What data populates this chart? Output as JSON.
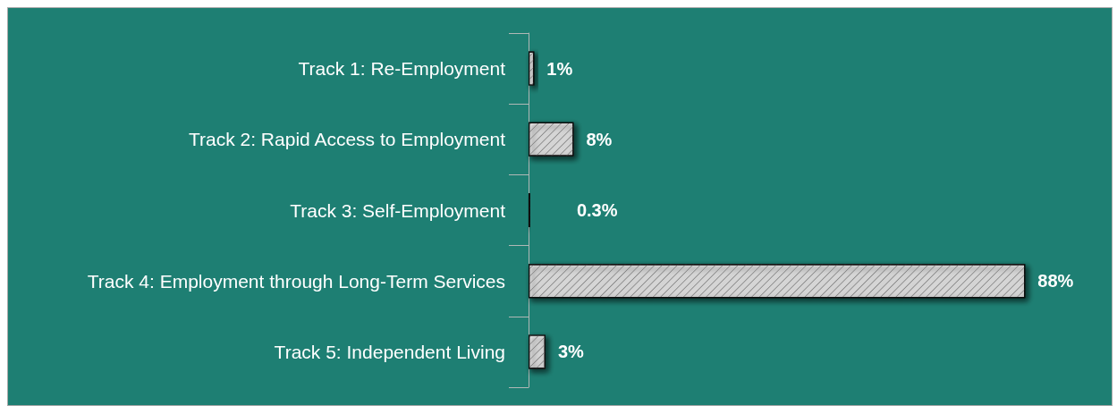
{
  "chart_data": {
    "type": "bar",
    "orientation": "horizontal",
    "categories": [
      "Track 1: Re-Employment",
      "Track 2: Rapid Access to Employment",
      "Track 3: Self-Employment",
      "Track 4: Employment through Long-Term Services",
      "Track 5: Independent Living"
    ],
    "values": [
      1,
      8,
      0.3,
      88,
      3
    ],
    "value_labels": [
      "1%",
      "8%",
      "0.3%",
      "88%",
      "3%"
    ],
    "color": "#ffffff"
  }
}
